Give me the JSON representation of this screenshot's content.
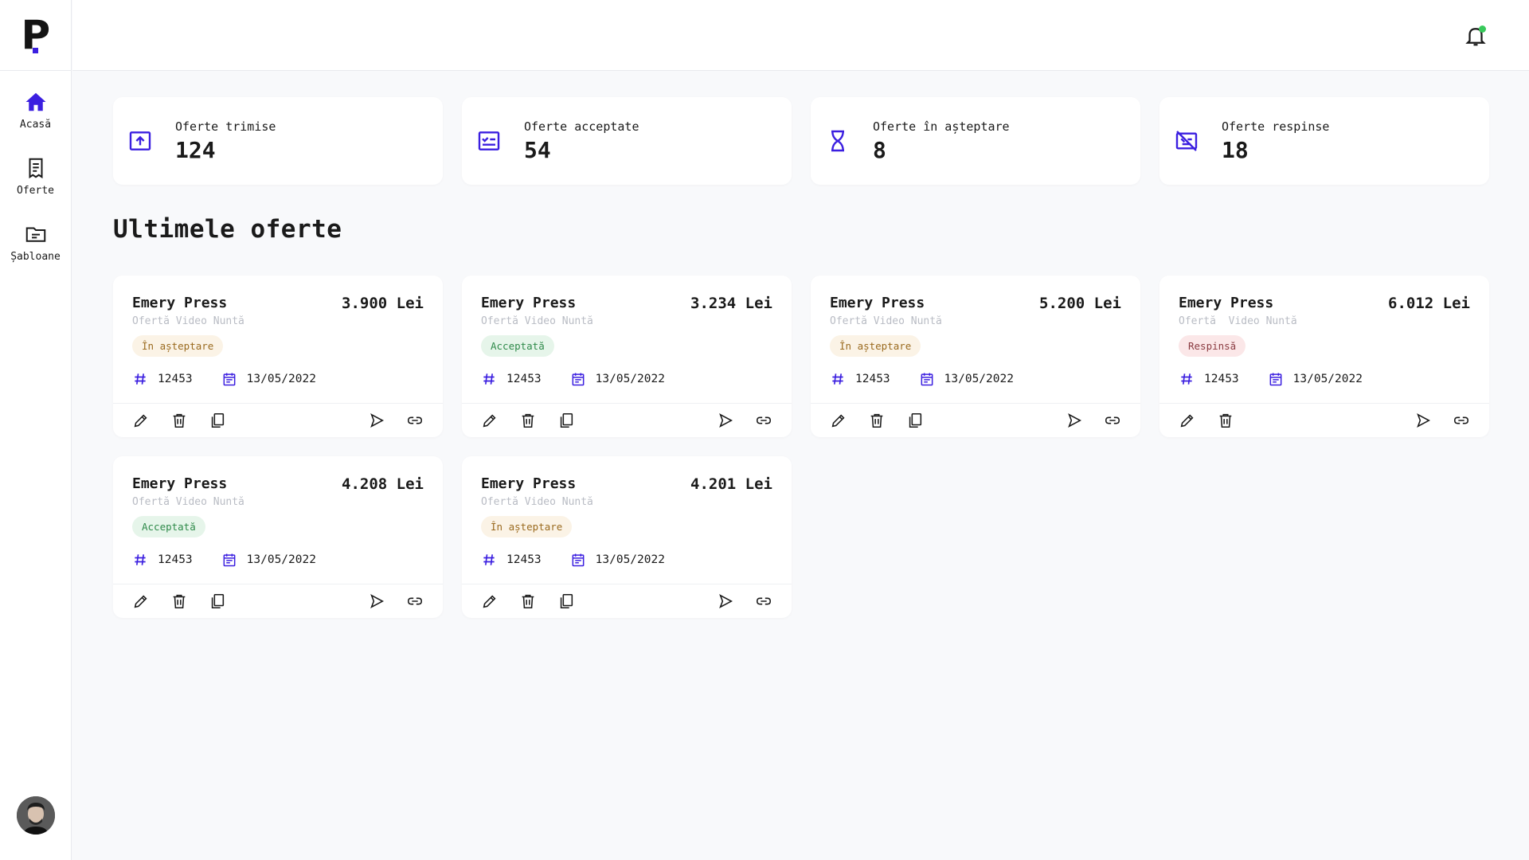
{
  "brand": {
    "logo_letter": "P",
    "accent": "#3b1fe0"
  },
  "sidebar": {
    "items": [
      {
        "label": "Acasă",
        "icon": "home-icon"
      },
      {
        "label": "Oferte",
        "icon": "receipt-icon"
      },
      {
        "label": "Șabloane",
        "icon": "folder-icon"
      }
    ]
  },
  "stats": [
    {
      "label": "Oferte trimise",
      "value": "124",
      "icon": "upload-icon"
    },
    {
      "label": "Oferte acceptate",
      "value": "54",
      "icon": "checklist-icon"
    },
    {
      "label": "Oferte în așteptare",
      "value": "8",
      "icon": "hourglass-icon"
    },
    {
      "label": "Oferte respinse",
      "value": "18",
      "icon": "rejected-icon"
    }
  ],
  "section": {
    "title": "Ultimele oferte"
  },
  "offers": [
    {
      "client": "Emery Press",
      "price": "3.900 Lei",
      "subtitle": "Ofertă Video Nuntă",
      "status": "În așteptare",
      "number": "12453",
      "date": "13/05/2022"
    },
    {
      "client": "Emery Press",
      "price": "3.234 Lei",
      "subtitle": "Ofertă Video Nuntă",
      "status": "Acceptată",
      "number": "12453",
      "date": "13/05/2022"
    },
    {
      "client": "Emery Press",
      "price": "5.200 Lei",
      "subtitle": "Ofertă Video Nuntă",
      "status": "În așteptare",
      "number": "12453",
      "date": "13/05/2022"
    },
    {
      "client": "Emery Press",
      "price": "6.012 Lei",
      "subtitle": "Ofertă  Video Nuntă",
      "status": "Respinsă",
      "number": "12453",
      "date": "13/05/2022"
    },
    {
      "client": "Emery Press",
      "price": "4.208 Lei",
      "subtitle": "Ofertă Video Nuntă",
      "status": "Acceptată",
      "number": "12453",
      "date": "13/05/2022"
    },
    {
      "client": "Emery Press",
      "price": "4.201 Lei",
      "subtitle": "Ofertă Video Nuntă",
      "status": "În așteptare",
      "number": "12453",
      "date": "13/05/2022"
    }
  ],
  "colors": {
    "pending": "#9a6a1e",
    "accepted": "#2f8a4a",
    "rejected": "#8a3a40",
    "notification": "#38c95b"
  }
}
